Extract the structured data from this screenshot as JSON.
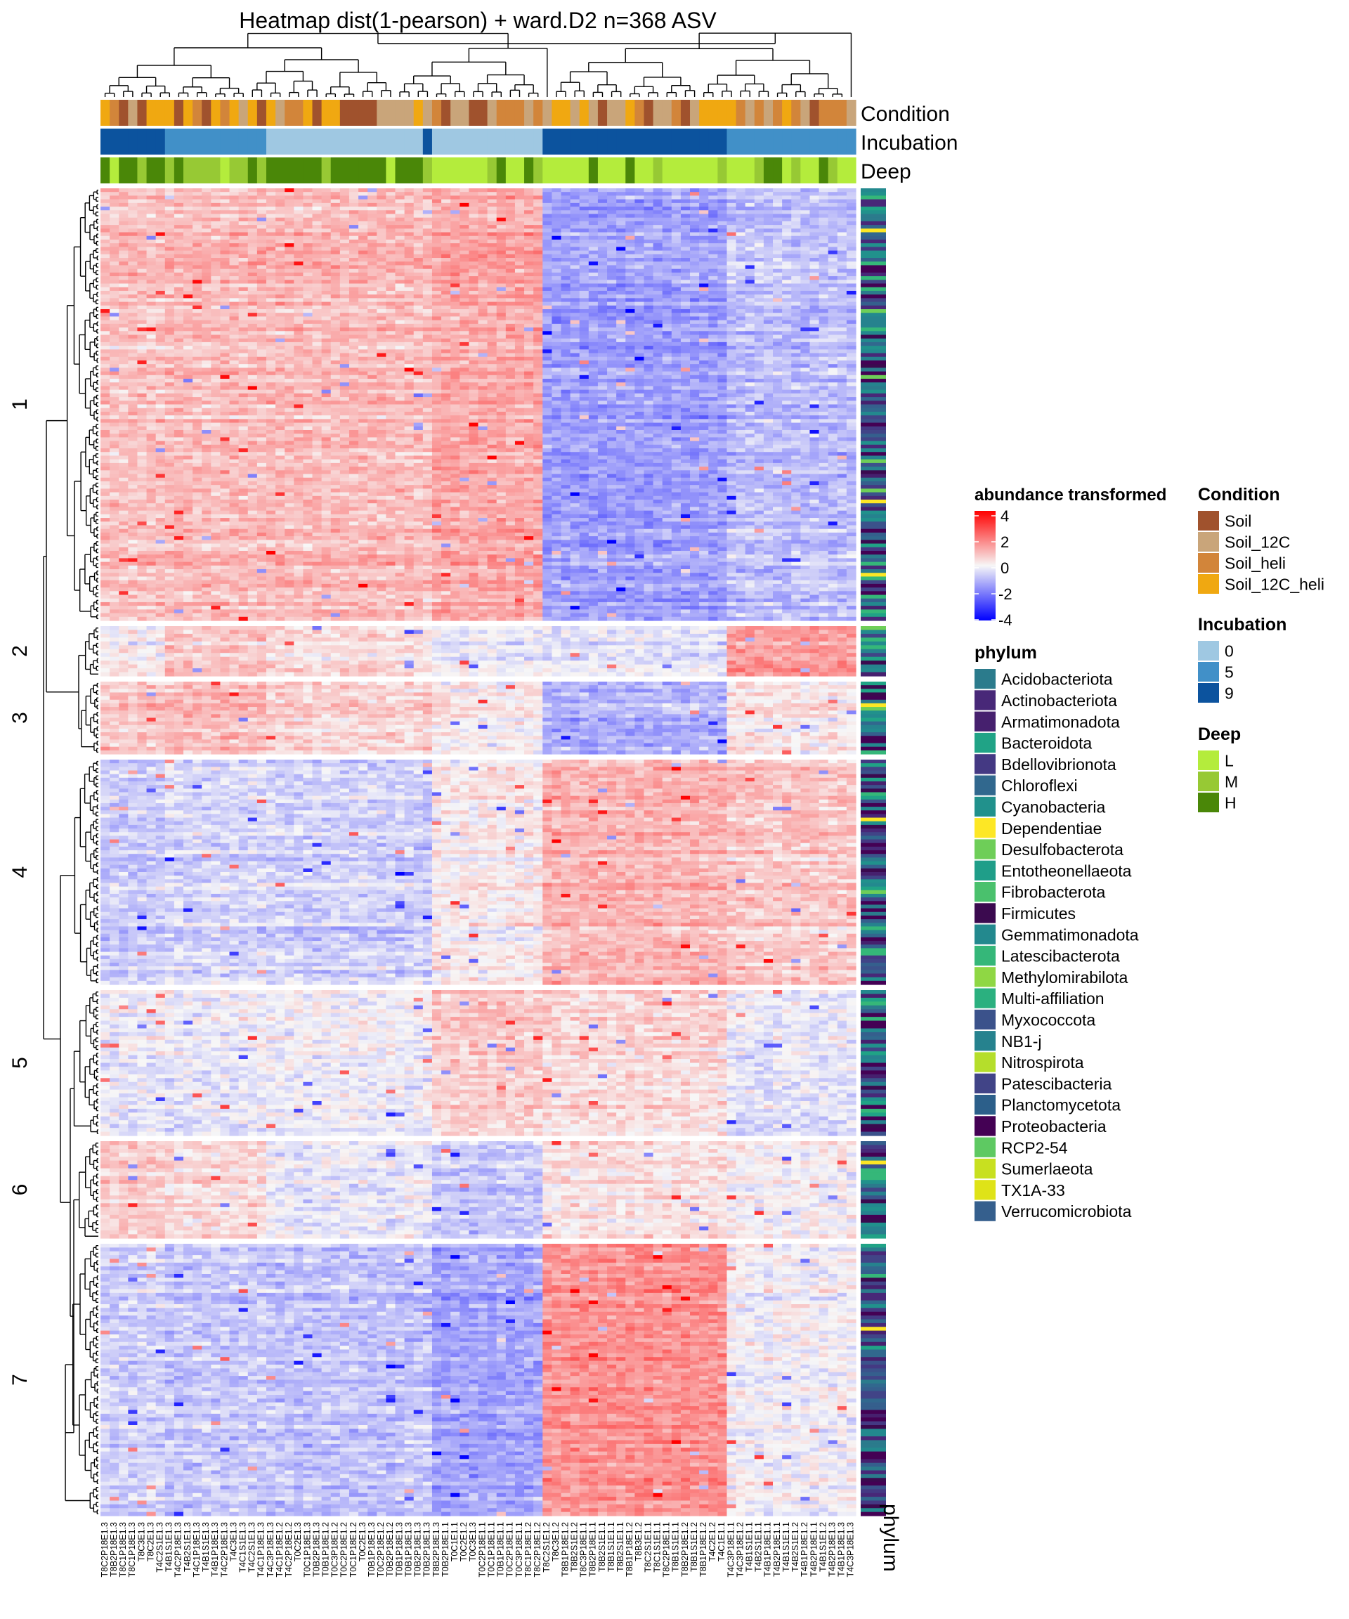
{
  "title": "Heatmap dist(1-pearson) + ward.D2  n=368 ASV",
  "chart_data": {
    "type": "heatmap",
    "n_rows": 368,
    "n_columns": 82,
    "row_clusters": [
      {
        "label": "1",
        "rows": 118
      },
      {
        "label": "2",
        "rows": 13
      },
      {
        "label": "3",
        "rows": 20
      },
      {
        "label": "4",
        "rows": 62
      },
      {
        "label": "5",
        "rows": 38
      },
      {
        "label": "6",
        "rows": 25
      },
      {
        "label": "7",
        "rows": 72
      }
    ],
    "column_groups": [
      {
        "columns": 7,
        "incubation": "9",
        "deep": "H"
      },
      {
        "columns": 11,
        "incubation": "5",
        "deep": "M"
      },
      {
        "columns": 17,
        "incubation": "0",
        "deep": "H"
      },
      {
        "columns": 1,
        "incubation": "9",
        "deep": "M"
      },
      {
        "columns": 12,
        "incubation": "0",
        "deep": "L"
      },
      {
        "columns": 20,
        "incubation": "9",
        "deep": "L"
      },
      {
        "columns": 14,
        "incubation": "5",
        "deep": "L"
      }
    ],
    "annotation_tracks": [
      "Condition",
      "Incubation",
      "Deep"
    ],
    "row_annotation_label": "phylum",
    "color_scale": {
      "title": "abundance transformed",
      "ticks": [
        "4",
        "2",
        "0",
        "-2",
        "-4"
      ],
      "min": -4,
      "max": 4,
      "low_color": "#0000ff",
      "mid_color": "#f7f7f7",
      "high_color": "#ff0000"
    },
    "pattern_by_cluster": {
      "1": [
        0.9,
        1.0,
        1.0,
        0.9,
        1.3,
        -1.4,
        -0.9
      ],
      "2": [
        0.0,
        0.7,
        0.3,
        0.2,
        -0.3,
        -0.4,
        1.4
      ],
      "3": [
        0.8,
        1.0,
        0.6,
        0.6,
        0.2,
        -1.1,
        0.3
      ],
      "4": [
        -0.7,
        -0.5,
        -0.6,
        -0.8,
        0.2,
        1.1,
        0.8
      ],
      "5": [
        -0.2,
        -0.2,
        -0.1,
        0.0,
        0.7,
        0.5,
        -0.3
      ],
      "6": [
        0.7,
        0.5,
        -0.2,
        -0.3,
        -0.7,
        0.4,
        0.1
      ],
      "7": [
        -0.6,
        -0.7,
        -0.8,
        -0.8,
        -1.3,
        1.7,
        0.0
      ]
    },
    "column_labels": [
      "T8C2P18E1.3",
      "T8B2P18E1.3",
      "T8C1P18E1.3",
      "T8C1P18E1.3",
      "T8C3E1.3",
      "T8C2E1.3",
      "T4C2S1E1.3",
      "T4B1S1E1.3",
      "T4C2P18E1.3",
      "T4B2S1E1.3",
      "T4C1P18E1.3",
      "T4B1S1E1.3",
      "T4B1P18E1.3",
      "T4C2P18E1.3",
      "T4C3E1.3",
      "T4C1S1E1.3",
      "T4C2S1E1.3",
      "T4C1P18E1.3",
      "T4C3P18E1.3",
      "T4C1P18E1.2",
      "T4C2P18E1.2",
      "T0C2E1.3",
      "T0C1P18E1.3",
      "T0B2P18E1.3",
      "T0B1P18E1.2",
      "T0C3P18E1.2",
      "T0C2P18E1.2",
      "T0C1P18E1.2",
      "T0C2E1.3",
      "T0B1P18E1.3",
      "T0C2P18E1.2",
      "T0B2P18E1.2",
      "T0B1P18E1.3",
      "T0B1P18E1.3",
      "T0B2P18E1.3",
      "T0B2P18E1.3",
      "T8B2P18E1.3",
      "T0B2P18E1.1",
      "T0C1E1.1",
      "T0C2E1.2",
      "T0C3E1.3",
      "T0C2P18E1.1",
      "T0C1P18E1.1",
      "T0B1P18E1.1",
      "T0C2P18E1.1",
      "T0C3P18E1.1",
      "T8C1P18E1.2",
      "T8C2P18E1.2",
      "T8C2S1E1.2",
      "T8C3E1.2",
      "T8B1P18E1.2",
      "T8B2S1E1.2",
      "T8C3P18E1.1",
      "T8B2P18E1.1",
      "T8B2S1E1.1",
      "T8B1S1E1.1",
      "T8B2S1E1.1",
      "T8B1P18E1.2",
      "T8B3E1.2",
      "T8C2S1E1.1",
      "T8C1S1E1.1",
      "T8C2P18E1.1",
      "T8B1S1E1.1",
      "T8B2P18E1.2",
      "T8B1S1E1.2",
      "T8B1P18E1.2",
      "T4C2E1.2",
      "T4C1E1.1",
      "T4C3P18E1.1",
      "T4C3P18E1.2",
      "T4B1S1E1.1",
      "T4B2S1E1.1",
      "T4B1P18E1.1",
      "T4B2P18E1.1",
      "T4B1S1E1.1",
      "T4B2S1E1.2",
      "T4B1P18E1.2",
      "T4B2P18E1.1",
      "T4B1S1E1.2",
      "T4B2P18E1.3",
      "T4B1P18E1.3",
      "T4C3P18E1.3"
    ]
  },
  "legends": {
    "condition": {
      "title": "Condition",
      "items": [
        {
          "label": "Soil",
          "color": "#a0522d"
        },
        {
          "label": "Soil_12C",
          "color": "#c9a57a"
        },
        {
          "label": "Soil_heli",
          "color": "#d2853a"
        },
        {
          "label": "Soil_12C_heli",
          "color": "#f0a811"
        }
      ]
    },
    "incubation": {
      "title": "Incubation",
      "items": [
        {
          "label": "0",
          "color": "#9fc8e2"
        },
        {
          "label": "5",
          "color": "#4190c8"
        },
        {
          "label": "9",
          "color": "#0c539e"
        }
      ]
    },
    "deep": {
      "title": "Deep",
      "items": [
        {
          "label": "L",
          "color": "#b4ec3c"
        },
        {
          "label": "M",
          "color": "#97c934"
        },
        {
          "label": "H",
          "color": "#4a8708"
        }
      ]
    },
    "phylum": {
      "title": "phylum",
      "items": [
        {
          "label": "Acidobacteriota",
          "color": "#2b7b8c"
        },
        {
          "label": "Actinobacteriota",
          "color": "#482878"
        },
        {
          "label": "Armatimonadota",
          "color": "#46206e"
        },
        {
          "label": "Bacteroidota",
          "color": "#20a386"
        },
        {
          "label": "Bdellovibrionota",
          "color": "#443983"
        },
        {
          "label": "Chloroflexi",
          "color": "#31688e"
        },
        {
          "label": "Cyanobacteria",
          "color": "#21918c"
        },
        {
          "label": "Dependentiae",
          "color": "#fde725"
        },
        {
          "label": "Desulfobacterota",
          "color": "#6ece58"
        },
        {
          "label": "Entotheonellaeota",
          "color": "#1f9e89"
        },
        {
          "label": "Fibrobacterota",
          "color": "#4ac16d"
        },
        {
          "label": "Firmicutes",
          "color": "#3b0a4f"
        },
        {
          "label": "Gemmatimonadota",
          "color": "#23898e"
        },
        {
          "label": "Latescibacterota",
          "color": "#35b779"
        },
        {
          "label": "Methylomirabilota",
          "color": "#8fd744"
        },
        {
          "label": "Multi-affiliation",
          "color": "#2bb07f"
        },
        {
          "label": "Myxococcota",
          "color": "#3b528b"
        },
        {
          "label": "NB1-j",
          "color": "#26828e"
        },
        {
          "label": "Nitrospirota",
          "color": "#b5de2b"
        },
        {
          "label": "Patescibacteria",
          "color": "#414487"
        },
        {
          "label": "Planctomycetota",
          "color": "#2c5f8a"
        },
        {
          "label": "Proteobacteria",
          "color": "#440154"
        },
        {
          "label": "RCP2-54",
          "color": "#5ec962"
        },
        {
          "label": "Sumerlaeota",
          "color": "#c8e020"
        },
        {
          "label": "TX1A-33",
          "color": "#dfe318"
        },
        {
          "label": "Verrucomicrobiota",
          "color": "#355f8d"
        }
      ]
    }
  }
}
